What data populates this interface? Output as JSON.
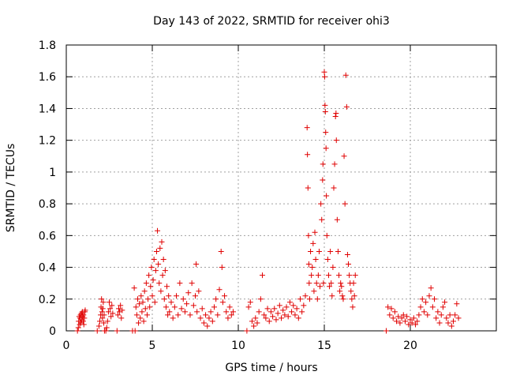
{
  "chart_data": {
    "type": "scatter",
    "title": "Day 143 of 2022, SRMTID for receiver ohi3",
    "xlabel": "GPS time / hours",
    "ylabel": "SRMTID / TECUs",
    "xlim": [
      0,
      25
    ],
    "ylim": [
      0,
      1.8
    ],
    "grid": true,
    "marker": "+",
    "series_color": "#e00000",
    "x_ticks": [
      0,
      5,
      10,
      15,
      20
    ],
    "x_tick_labels": [
      "0",
      "5",
      "10",
      "15",
      "20"
    ],
    "y_ticks": [
      0,
      0.2,
      0.4,
      0.6,
      0.8,
      1.0,
      1.2,
      1.4,
      1.6,
      1.8
    ],
    "y_tick_labels": [
      "0",
      "0.2",
      "0.4",
      "0.6",
      "0.8",
      "1",
      "1.2",
      "1.4",
      "1.6",
      "1.8"
    ],
    "series": [
      {
        "name": "SRMTID",
        "points": [
          [
            0.65,
            0.0
          ],
          [
            0.7,
            0.02
          ],
          [
            0.72,
            0.06
          ],
          [
            0.75,
            0.09
          ],
          [
            0.78,
            0.04
          ],
          [
            0.8,
            0.08
          ],
          [
            0.83,
            0.1
          ],
          [
            0.85,
            0.05
          ],
          [
            0.88,
            0.11
          ],
          [
            0.9,
            0.07
          ],
          [
            0.93,
            0.12
          ],
          [
            0.95,
            0.09
          ],
          [
            0.98,
            0.06
          ],
          [
            1.0,
            0.1
          ],
          [
            1.02,
            0.04
          ],
          [
            1.05,
            0.08
          ],
          [
            1.08,
            0.12
          ],
          [
            1.1,
            0.13
          ],
          [
            1.8,
            0.0
          ],
          [
            1.9,
            0.03
          ],
          [
            1.95,
            0.06
          ],
          [
            2.0,
            0.1
          ],
          [
            2.02,
            0.15
          ],
          [
            2.05,
            0.2
          ],
          [
            2.08,
            0.12
          ],
          [
            2.1,
            0.08
          ],
          [
            2.12,
            0.14
          ],
          [
            2.15,
            0.18
          ],
          [
            2.18,
            0.05
          ],
          [
            2.2,
            0.1
          ],
          [
            2.22,
            0.0
          ],
          [
            2.3,
            0.0
          ],
          [
            2.35,
            0.02
          ],
          [
            2.4,
            0.06
          ],
          [
            2.45,
            0.12
          ],
          [
            2.5,
            0.18
          ],
          [
            2.55,
            0.14
          ],
          [
            2.6,
            0.09
          ],
          [
            2.65,
            0.16
          ],
          [
            2.7,
            0.11
          ],
          [
            2.95,
            0.0
          ],
          [
            3.0,
            0.1
          ],
          [
            3.05,
            0.14
          ],
          [
            3.1,
            0.12
          ],
          [
            3.15,
            0.16
          ],
          [
            3.2,
            0.08
          ],
          [
            3.25,
            0.13
          ],
          [
            3.85,
            0.0
          ],
          [
            3.95,
            0.27
          ],
          [
            4.0,
            0.0
          ],
          [
            4.05,
            0.15
          ],
          [
            4.1,
            0.1
          ],
          [
            4.15,
            0.2
          ],
          [
            4.2,
            0.05
          ],
          [
            4.25,
            0.17
          ],
          [
            4.3,
            0.08
          ],
          [
            4.35,
            0.22
          ],
          [
            4.4,
            0.12
          ],
          [
            4.45,
            0.18
          ],
          [
            4.5,
            0.06
          ],
          [
            4.55,
            0.25
          ],
          [
            4.6,
            0.14
          ],
          [
            4.65,
            0.3
          ],
          [
            4.7,
            0.1
          ],
          [
            4.75,
            0.2
          ],
          [
            4.8,
            0.35
          ],
          [
            4.85,
            0.15
          ],
          [
            4.9,
            0.28
          ],
          [
            4.95,
            0.4
          ],
          [
            5.0,
            0.22
          ],
          [
            5.05,
            0.32
          ],
          [
            5.1,
            0.45
          ],
          [
            5.15,
            0.18
          ],
          [
            5.2,
            0.38
          ],
          [
            5.25,
            0.5
          ],
          [
            5.3,
            0.63
          ],
          [
            5.35,
            0.42
          ],
          [
            5.4,
            0.3
          ],
          [
            5.45,
            0.52
          ],
          [
            5.5,
            0.25
          ],
          [
            5.55,
            0.56
          ],
          [
            5.6,
            0.35
          ],
          [
            5.65,
            0.45
          ],
          [
            5.7,
            0.2
          ],
          [
            5.75,
            0.38
          ],
          [
            5.8,
            0.15
          ],
          [
            5.85,
            0.28
          ],
          [
            5.9,
            0.1
          ],
          [
            5.95,
            0.22
          ],
          [
            6.0,
            0.12
          ],
          [
            6.1,
            0.18
          ],
          [
            6.2,
            0.08
          ],
          [
            6.3,
            0.15
          ],
          [
            6.4,
            0.22
          ],
          [
            6.5,
            0.1
          ],
          [
            6.6,
            0.3
          ],
          [
            6.7,
            0.14
          ],
          [
            6.8,
            0.2
          ],
          [
            6.9,
            0.12
          ],
          [
            7.0,
            0.17
          ],
          [
            7.1,
            0.24
          ],
          [
            7.2,
            0.1
          ],
          [
            7.3,
            0.3
          ],
          [
            7.4,
            0.16
          ],
          [
            7.5,
            0.22
          ],
          [
            7.55,
            0.42
          ],
          [
            7.6,
            0.12
          ],
          [
            7.7,
            0.25
          ],
          [
            7.8,
            0.08
          ],
          [
            7.9,
            0.14
          ],
          [
            8.0,
            0.05
          ],
          [
            8.1,
            0.1
          ],
          [
            8.2,
            0.03
          ],
          [
            8.3,
            0.08
          ],
          [
            8.4,
            0.12
          ],
          [
            8.5,
            0.06
          ],
          [
            8.6,
            0.15
          ],
          [
            8.7,
            0.2
          ],
          [
            8.8,
            0.1
          ],
          [
            8.9,
            0.26
          ],
          [
            9.0,
            0.5
          ],
          [
            9.05,
            0.4
          ],
          [
            9.1,
            0.18
          ],
          [
            9.2,
            0.22
          ],
          [
            9.3,
            0.12
          ],
          [
            9.4,
            0.08
          ],
          [
            9.5,
            0.15
          ],
          [
            9.6,
            0.1
          ],
          [
            9.7,
            0.12
          ],
          [
            10.5,
            0.0
          ],
          [
            10.6,
            0.15
          ],
          [
            10.7,
            0.18
          ],
          [
            10.8,
            0.06
          ],
          [
            10.9,
            0.03
          ],
          [
            11.0,
            0.08
          ],
          [
            11.1,
            0.05
          ],
          [
            11.2,
            0.12
          ],
          [
            11.3,
            0.2
          ],
          [
            11.4,
            0.35
          ],
          [
            11.5,
            0.1
          ],
          [
            11.6,
            0.08
          ],
          [
            11.7,
            0.14
          ],
          [
            11.8,
            0.06
          ],
          [
            11.9,
            0.12
          ],
          [
            12.0,
            0.09
          ],
          [
            12.1,
            0.14
          ],
          [
            12.2,
            0.07
          ],
          [
            12.3,
            0.11
          ],
          [
            12.4,
            0.16
          ],
          [
            12.5,
            0.08
          ],
          [
            12.6,
            0.13
          ],
          [
            12.7,
            0.1
          ],
          [
            12.8,
            0.15
          ],
          [
            12.9,
            0.09
          ],
          [
            13.0,
            0.18
          ],
          [
            13.1,
            0.12
          ],
          [
            13.2,
            0.16
          ],
          [
            13.3,
            0.1
          ],
          [
            13.4,
            0.14
          ],
          [
            13.5,
            0.08
          ],
          [
            13.6,
            0.2
          ],
          [
            13.7,
            0.12
          ],
          [
            13.8,
            0.16
          ],
          [
            13.9,
            0.22
          ],
          [
            14.0,
            1.28
          ],
          [
            14.02,
            1.11
          ],
          [
            14.05,
            0.9
          ],
          [
            14.08,
            0.6
          ],
          [
            14.1,
            0.42
          ],
          [
            14.12,
            0.3
          ],
          [
            14.15,
            0.2
          ],
          [
            14.2,
            0.5
          ],
          [
            14.25,
            0.35
          ],
          [
            14.3,
            0.4
          ],
          [
            14.35,
            0.55
          ],
          [
            14.4,
            0.25
          ],
          [
            14.45,
            0.62
          ],
          [
            14.5,
            0.45
          ],
          [
            14.55,
            0.3
          ],
          [
            14.6,
            0.2
          ],
          [
            14.65,
            0.35
          ],
          [
            14.7,
            0.5
          ],
          [
            14.75,
            0.28
          ],
          [
            14.8,
            0.8
          ],
          [
            14.85,
            0.7
          ],
          [
            14.9,
            0.95
          ],
          [
            14.92,
            1.05
          ],
          [
            14.95,
            0.3
          ],
          [
            15.0,
            1.63
          ],
          [
            15.02,
            1.6
          ],
          [
            15.04,
            1.42
          ],
          [
            15.06,
            1.38
          ],
          [
            15.08,
            1.25
          ],
          [
            15.1,
            1.15
          ],
          [
            15.12,
            0.85
          ],
          [
            15.15,
            0.6
          ],
          [
            15.2,
            0.45
          ],
          [
            15.25,
            0.35
          ],
          [
            15.3,
            0.28
          ],
          [
            15.35,
            0.5
          ],
          [
            15.4,
            0.3
          ],
          [
            15.45,
            0.22
          ],
          [
            15.5,
            0.4
          ],
          [
            15.55,
            0.9
          ],
          [
            15.6,
            1.05
          ],
          [
            15.65,
            1.35
          ],
          [
            15.68,
            1.37
          ],
          [
            15.7,
            1.2
          ],
          [
            15.75,
            0.7
          ],
          [
            15.8,
            0.5
          ],
          [
            15.85,
            0.35
          ],
          [
            15.9,
            0.25
          ],
          [
            15.95,
            0.3
          ],
          [
            16.0,
            0.28
          ],
          [
            16.05,
            0.22
          ],
          [
            16.1,
            0.2
          ],
          [
            16.15,
            1.1
          ],
          [
            16.2,
            0.8
          ],
          [
            16.25,
            1.61
          ],
          [
            16.3,
            1.41
          ],
          [
            16.35,
            0.48
          ],
          [
            16.4,
            0.42
          ],
          [
            16.45,
            0.35
          ],
          [
            16.5,
            0.3
          ],
          [
            16.55,
            0.25
          ],
          [
            16.6,
            0.2
          ],
          [
            16.65,
            0.15
          ],
          [
            16.7,
            0.3
          ],
          [
            16.75,
            0.22
          ],
          [
            16.8,
            0.35
          ],
          [
            18.6,
            0.0
          ],
          [
            18.7,
            0.15
          ],
          [
            18.8,
            0.1
          ],
          [
            18.9,
            0.14
          ],
          [
            19.0,
            0.08
          ],
          [
            19.1,
            0.12
          ],
          [
            19.2,
            0.06
          ],
          [
            19.3,
            0.09
          ],
          [
            19.4,
            0.05
          ],
          [
            19.5,
            0.08
          ],
          [
            19.6,
            0.1
          ],
          [
            19.7,
            0.06
          ],
          [
            19.8,
            0.09
          ],
          [
            19.9,
            0.04
          ],
          [
            20.0,
            0.07
          ],
          [
            20.1,
            0.05
          ],
          [
            20.2,
            0.08
          ],
          [
            20.3,
            0.04
          ],
          [
            20.4,
            0.06
          ],
          [
            20.5,
            0.1
          ],
          [
            20.6,
            0.15
          ],
          [
            20.7,
            0.2
          ],
          [
            20.8,
            0.12
          ],
          [
            20.9,
            0.18
          ],
          [
            21.0,
            0.1
          ],
          [
            21.1,
            0.22
          ],
          [
            21.2,
            0.27
          ],
          [
            21.3,
            0.15
          ],
          [
            21.4,
            0.2
          ],
          [
            21.5,
            0.08
          ],
          [
            21.6,
            0.12
          ],
          [
            21.7,
            0.05
          ],
          [
            21.8,
            0.1
          ],
          [
            21.9,
            0.15
          ],
          [
            22.0,
            0.18
          ],
          [
            22.1,
            0.08
          ],
          [
            22.2,
            0.05
          ],
          [
            22.3,
            0.1
          ],
          [
            22.4,
            0.03
          ],
          [
            22.5,
            0.06
          ],
          [
            22.6,
            0.1
          ],
          [
            22.7,
            0.17
          ],
          [
            22.8,
            0.08
          ]
        ]
      }
    ]
  }
}
